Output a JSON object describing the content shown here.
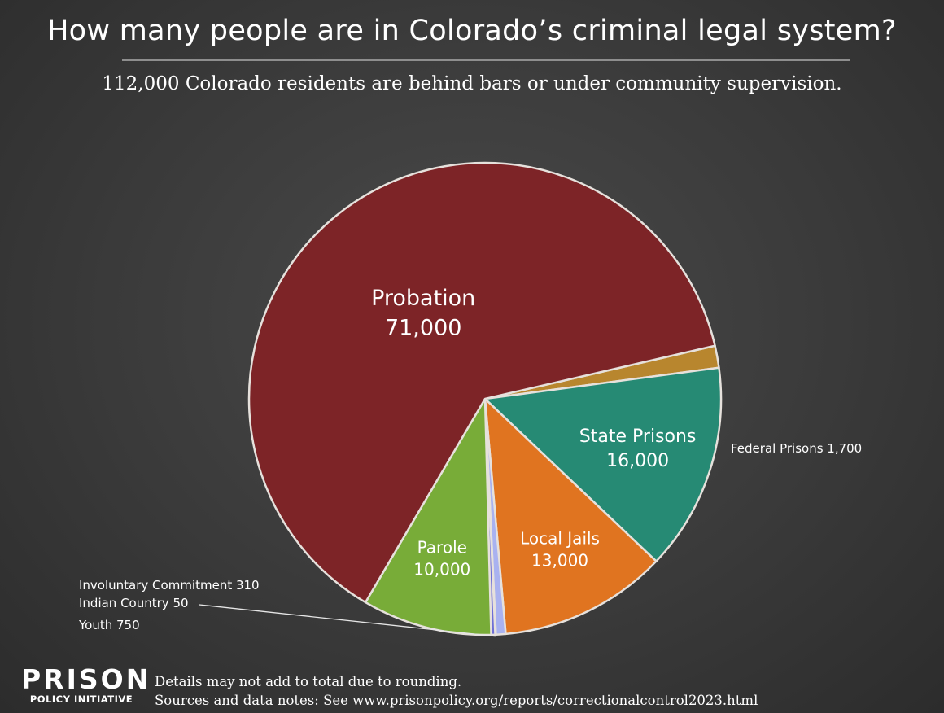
{
  "title": "How many people are in Colorado’s criminal legal system?",
  "subtitle": "112,000 Colorado residents are behind bars or under community supervision.",
  "logo": {
    "line1": "PRISON",
    "line2": "POLICY INITIATIVE"
  },
  "notes": {
    "line1": "Details may not add to total due to rounding.",
    "line2": "Sources and data notes: See www.prisonpolicy.org/reports/correctionalcontrol2023.html"
  },
  "chart_data": {
    "type": "pie",
    "title": "How many people are in Colorado’s criminal legal system?",
    "slices": [
      {
        "label": "Federal Prisons",
        "value": 1700,
        "value_text": "1,700",
        "color": "#B8862E",
        "label_style": "outside"
      },
      {
        "label": "State Prisons",
        "value": 16000,
        "value_text": "16,000",
        "color": "#268A74",
        "label_style": "inside"
      },
      {
        "label": "Local Jails",
        "value": 13000,
        "value_text": "13,000",
        "color": "#E07420",
        "label_style": "inside"
      },
      {
        "label": "Youth",
        "value": 750,
        "value_text": "750",
        "color": "#A9B2F0",
        "label_style": "outside"
      },
      {
        "label": "Indian Country",
        "value": 50,
        "value_text": "50",
        "color": "#D6D9FF",
        "label_style": "outside"
      },
      {
        "label": "Involuntary Commitment",
        "value": 310,
        "value_text": "310",
        "color": "#6F6FD6",
        "label_style": "outside"
      },
      {
        "label": "Parole",
        "value": 10000,
        "value_text": "10,000",
        "color": "#78AC38",
        "label_style": "inside"
      },
      {
        "label": "Probation",
        "value": 71000,
        "value_text": "71,000",
        "color": "#7D2427",
        "label_style": "inside"
      }
    ],
    "border_color": "#E6E1DC"
  }
}
